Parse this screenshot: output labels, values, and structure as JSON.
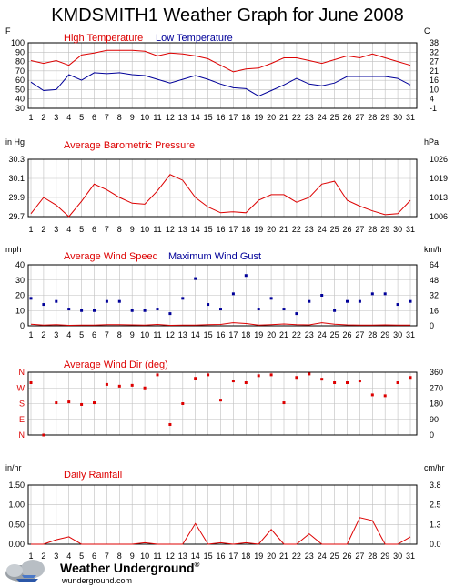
{
  "page": {
    "title": "KMDSMITH1 Weather Graph for June 2008"
  },
  "brand": {
    "name": "Weather Underground",
    "trademark": "®",
    "url": "wunderground.com"
  },
  "days": [
    "1",
    "2",
    "3",
    "4",
    "5",
    "6",
    "7",
    "8",
    "9",
    "10",
    "11",
    "12",
    "13",
    "14",
    "15",
    "16",
    "17",
    "18",
    "19",
    "20",
    "21",
    "22",
    "23",
    "24",
    "25",
    "26",
    "27",
    "28",
    "29",
    "30",
    "31"
  ],
  "colors": {
    "red": "#dd0000",
    "blue": "#000099",
    "grid": "#bfbfbf",
    "frame": "#000000"
  },
  "chart_data": [
    {
      "id": "temperature",
      "type": "line",
      "left_unit": "F",
      "right_unit": "C",
      "title": "High Temperature",
      "title2": "Low Temperature",
      "ylim": [
        30,
        100
      ],
      "left_ticks": [
        "100",
        "90",
        "80",
        "70",
        "60",
        "50",
        "40",
        "30"
      ],
      "right_ticks": [
        "38",
        "32",
        "27",
        "21",
        "16",
        "10",
        "4",
        "-1"
      ],
      "series": [
        {
          "name": "High Temperature",
          "color": "#dd0000",
          "values": [
            81,
            78,
            81,
            76,
            87,
            89,
            92,
            92,
            92,
            91,
            86,
            89,
            88,
            86,
            83,
            76,
            69,
            72,
            73,
            78,
            84,
            84,
            81,
            78,
            82,
            86,
            84,
            88,
            84,
            80,
            76
          ]
        },
        {
          "name": "Low Temperature",
          "color": "#000099",
          "values": [
            58,
            49,
            50,
            66,
            60,
            68,
            67,
            68,
            66,
            65,
            61,
            57,
            61,
            65,
            61,
            56,
            52,
            51,
            43,
            49,
            55,
            62,
            56,
            54,
            57,
            64,
            64,
            64,
            64,
            62,
            55
          ]
        }
      ]
    },
    {
      "id": "pressure",
      "type": "line",
      "left_unit": "in Hg",
      "right_unit": "hPa",
      "title": "Average Barometric Pressure",
      "ylim": [
        29.7,
        30.3
      ],
      "left_ticks": [
        "30.3",
        "30.1",
        "29.9",
        "29.7"
      ],
      "right_ticks": [
        "1026",
        "1019",
        "1013",
        "1006"
      ],
      "series": [
        {
          "name": "Average Barometric Pressure",
          "color": "#dd0000",
          "values": [
            29.73,
            29.9,
            29.82,
            29.7,
            29.86,
            30.04,
            29.98,
            29.9,
            29.84,
            29.83,
            29.97,
            30.14,
            30.08,
            29.9,
            29.8,
            29.74,
            29.75,
            29.74,
            29.87,
            29.93,
            29.93,
            29.85,
            29.9,
            30.04,
            30.07,
            29.87,
            29.81,
            29.76,
            29.72,
            29.73,
            29.87
          ]
        }
      ]
    },
    {
      "id": "wind-speed",
      "type": "line",
      "left_unit": "mph",
      "right_unit": "km/h",
      "title": "Average Wind Speed",
      "title2": "Maximum Wind Gust",
      "ylim": [
        0,
        40
      ],
      "left_ticks": [
        "40",
        "30",
        "20",
        "10",
        "0"
      ],
      "right_ticks": [
        "64",
        "48",
        "32",
        "16",
        "0"
      ],
      "series": [
        {
          "name": "Average Wind Speed",
          "color": "#dd0000",
          "kind": "line",
          "values": [
            1,
            0.5,
            0.8,
            0.3,
            0.4,
            0.5,
            0.8,
            0.7,
            0.6,
            0.4,
            0.9,
            0.3,
            0.4,
            0.5,
            0.7,
            0.9,
            2,
            1.5,
            0.5,
            0.8,
            1.2,
            0.7,
            0.6,
            2,
            1,
            0.6,
            0.5,
            0.4,
            0.6,
            0.4,
            0.5
          ]
        },
        {
          "name": "Maximum Wind Gust",
          "color": "#000099",
          "kind": "points",
          "values": [
            18,
            14,
            16,
            11,
            10,
            10,
            16,
            16,
            10,
            10,
            11,
            8,
            18,
            31,
            14,
            11,
            21,
            33,
            11,
            18,
            11,
            8,
            16,
            20,
            10,
            16,
            16,
            21,
            21,
            14,
            16
          ]
        }
      ]
    },
    {
      "id": "wind-dir",
      "type": "scatter",
      "left_unit": "",
      "right_unit": "",
      "title": "Average Wind Dir (deg)",
      "ylim": [
        0,
        360
      ],
      "left_ticks": [
        "N",
        "W",
        "S",
        "E",
        "N"
      ],
      "right_ticks": [
        "360",
        "270",
        "180",
        "90",
        "0"
      ],
      "series": [
        {
          "name": "Average Wind Dir (deg)",
          "color": "#dd0000",
          "values": [
            300,
            0,
            185,
            190,
            175,
            185,
            290,
            280,
            285,
            270,
            345,
            60,
            180,
            325,
            345,
            200,
            310,
            300,
            340,
            345,
            185,
            330,
            350,
            320,
            300,
            300,
            310,
            230,
            225,
            300,
            330
          ]
        }
      ]
    },
    {
      "id": "rainfall",
      "type": "line",
      "left_unit": "in/hr",
      "right_unit": "cm/hr",
      "title": "Daily Rainfall",
      "ylim": [
        0,
        2
      ],
      "left_ticks": [
        "1.50",
        "1.00",
        "0.50",
        "0.00"
      ],
      "right_ticks": [
        "3.8",
        "2.5",
        "1.3",
        "0.0"
      ],
      "series": [
        {
          "name": "Daily Rainfall",
          "color": "#dd0000",
          "values": [
            0,
            0,
            0.15,
            0.25,
            0,
            0,
            0,
            0,
            0,
            0.05,
            0,
            0,
            0,
            0.7,
            0,
            0.05,
            0,
            0.05,
            0,
            0.5,
            0,
            0,
            0.35,
            0,
            0,
            0,
            0.9,
            0.8,
            0,
            0,
            0.25
          ]
        }
      ]
    }
  ]
}
